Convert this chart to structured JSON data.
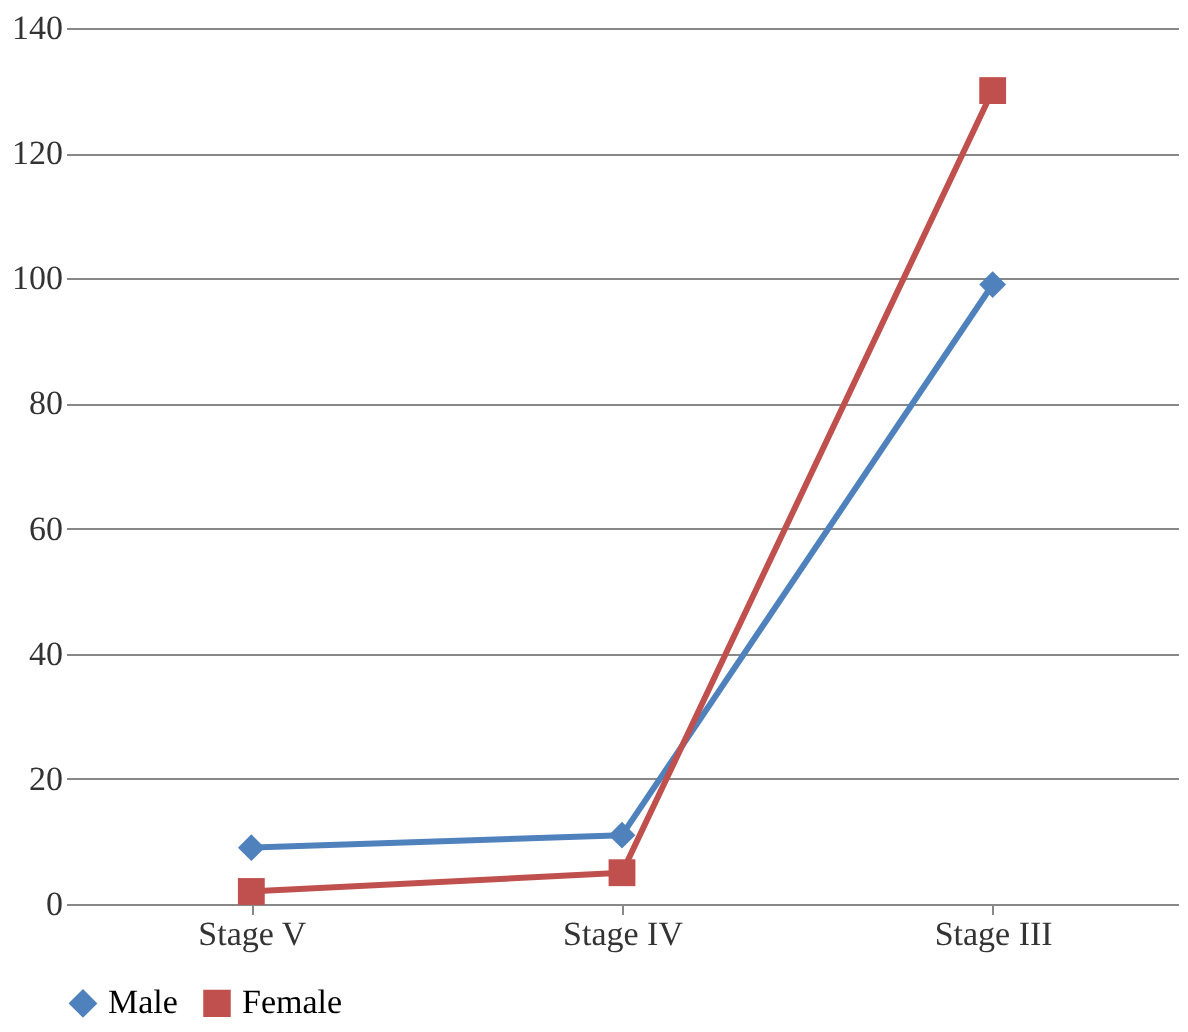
{
  "chart_data": {
    "type": "line",
    "categories": [
      "Stage V",
      "Stage IV",
      "Stage III"
    ],
    "series": [
      {
        "name": "Male",
        "color": "#4f81bd",
        "values": [
          9,
          11,
          99
        ],
        "marker": "diamond"
      },
      {
        "name": "Female",
        "color": "#c0504d",
        "values": [
          2,
          5,
          130
        ],
        "marker": "square"
      }
    ],
    "ylim": [
      0,
      140
    ],
    "yticks": [
      0,
      20,
      40,
      60,
      80,
      100,
      120,
      140
    ],
    "grid": "y",
    "legend": "bottom"
  }
}
